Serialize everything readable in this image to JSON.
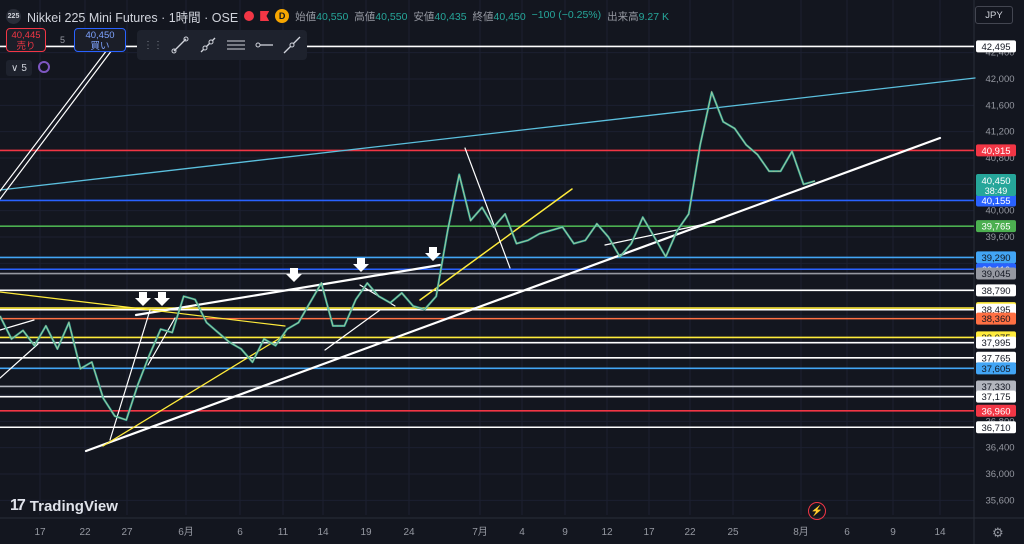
{
  "header": {
    "symbol_badge": "225",
    "title": "Nikkei 225 Mini Futures · 1時間 · OSE",
    "d_badge": "D",
    "ohlc": [
      {
        "label": "始値",
        "value": "40,550"
      },
      {
        "label": "高値",
        "value": "40,550"
      },
      {
        "label": "安値",
        "value": "40,435"
      },
      {
        "label": "終値",
        "value": "40,450"
      }
    ],
    "change": "−100 (−0.25%)",
    "volume_label": "出来高",
    "volume_value": "9.27 K"
  },
  "trade": {
    "sell_price": "40,445",
    "sell_label": "売り",
    "spread": "5",
    "buy_price": "40,450",
    "buy_label": "買い"
  },
  "indicator": {
    "count": "5",
    "chevron": "∨"
  },
  "toolbar": {
    "handle": "⋮⋮",
    "tools": [
      "trend-line-icon",
      "ray-icon",
      "parallel-channel-icon",
      "horizontal-ray-icon",
      "extended-line-icon"
    ]
  },
  "currency": "JPY",
  "brand": "TradingView",
  "brand_mark": "17",
  "settings_icon": "⚙",
  "chart_data": {
    "type": "line",
    "price_ticks": [
      "42,400",
      "42,000",
      "41,600",
      "41,200",
      "40,800",
      "40,400",
      "40,000",
      "39,600",
      "39,200",
      "38,800",
      "38,400",
      "38,000",
      "37,600",
      "37,200",
      "36,800",
      "36,400",
      "36,000",
      "35,600"
    ],
    "date_ticks": [
      {
        "label": "17",
        "pos": 0
      },
      {
        "label": "22",
        "pos": 1
      },
      {
        "label": "27",
        "pos": 2
      },
      {
        "label": "6月",
        "pos": 3
      },
      {
        "label": "6",
        "pos": 4
      },
      {
        "label": "11",
        "pos": 5
      },
      {
        "label": "14",
        "pos": 6
      },
      {
        "label": "19",
        "pos": 7
      },
      {
        "label": "24",
        "pos": 8
      },
      {
        "label": "7月",
        "pos": 9
      },
      {
        "label": "4",
        "pos": 10
      },
      {
        "label": "9",
        "pos": 11
      },
      {
        "label": "12",
        "pos": 12
      },
      {
        "label": "17",
        "pos": 13
      },
      {
        "label": "22",
        "pos": 14
      },
      {
        "label": "25",
        "pos": 15
      },
      {
        "label": "8月",
        "pos": 16
      },
      {
        "label": "6",
        "pos": 17
      },
      {
        "label": "9",
        "pos": 18
      },
      {
        "label": "14",
        "pos": 19
      }
    ],
    "ylim": [
      35500,
      42600
    ],
    "horizontal_levels": [
      {
        "price": 42495,
        "label": "42,495",
        "color": "#ffffff",
        "tag_bg": "#ffffff",
        "tag_fg": "#131722"
      },
      {
        "price": 40915,
        "label": "40,915",
        "color": "#f23645",
        "tag_bg": "#f23645",
        "tag_fg": "#ffffff"
      },
      {
        "price": 40155,
        "label": "40,155",
        "color": "#2962ff",
        "tag_bg": "#2962ff",
        "tag_fg": "#ffffff"
      },
      {
        "price": 39765,
        "label": "39,765",
        "color": "#4caf50",
        "tag_bg": "#4caf50",
        "tag_fg": "#ffffff"
      },
      {
        "price": 39290,
        "label": "39,290",
        "color": "#42a5f5",
        "tag_bg": "#42a5f5",
        "tag_fg": "#131722"
      },
      {
        "price": 39110,
        "label": "39,110",
        "color": "#2962ff",
        "tag_bg": "#2962ff",
        "tag_fg": "#ffffff"
      },
      {
        "price": 39045,
        "label": "39,045",
        "color": "#9598a1",
        "tag_bg": "#9598a1",
        "tag_fg": "#131722"
      },
      {
        "price": 38790,
        "label": "38,790",
        "color": "#ffffff",
        "tag_bg": "#ffffff",
        "tag_fg": "#131722"
      },
      {
        "price": 38520,
        "label": "38,520",
        "color": "#ffeb3b",
        "tag_bg": "#ffeb3b",
        "tag_fg": "#131722"
      },
      {
        "price": 38495,
        "label": "38,495",
        "color": "#ffffff",
        "tag_bg": "#ffffff",
        "tag_fg": "#131722"
      },
      {
        "price": 38360,
        "label": "38,360",
        "color": "#ff7043",
        "tag_bg": "#ff7043",
        "tag_fg": "#131722"
      },
      {
        "price": 38075,
        "label": "38,075",
        "color": "#ffeb3b",
        "tag_bg": "#ffeb3b",
        "tag_fg": "#131722"
      },
      {
        "price": 37995,
        "label": "37,995",
        "color": "#ffffff",
        "tag_bg": "#ffffff",
        "tag_fg": "#131722"
      },
      {
        "price": 37765,
        "label": "37,765",
        "color": "#ffffff",
        "tag_bg": "#ffffff",
        "tag_fg": "#131722"
      },
      {
        "price": 37605,
        "label": "37,605",
        "color": "#42a5f5",
        "tag_bg": "#42a5f5",
        "tag_fg": "#131722"
      },
      {
        "price": 37330,
        "label": "37,330",
        "color": "#b2b5be",
        "tag_bg": "#b2b5be",
        "tag_fg": "#131722"
      },
      {
        "price": 37175,
        "label": "37,175",
        "color": "#ffffff",
        "tag_bg": "#ffffff",
        "tag_fg": "#131722"
      },
      {
        "price": 36960,
        "label": "36,960",
        "color": "#f23645",
        "tag_bg": "#f23645",
        "tag_fg": "#ffffff"
      },
      {
        "price": 36710,
        "label": "36,710",
        "color": "#ffffff",
        "tag_bg": "#ffffff",
        "tag_fg": "#131722"
      }
    ],
    "current_price": {
      "label": "40,450",
      "countdown": "38:49",
      "color": "#26a69a"
    },
    "price_series": [
      38400,
      38050,
      38180,
      37950,
      38250,
      37900,
      38300,
      37600,
      37700,
      37150,
      36880,
      36820,
      37350,
      37800,
      38200,
      38150,
      38700,
      38650,
      38300,
      38150,
      38000,
      37900,
      37700,
      38050,
      37950,
      38200,
      38300,
      38600,
      38900,
      38250,
      38250,
      38650,
      38900,
      38700,
      38600,
      38750,
      38550,
      38500,
      38700,
      39700,
      40550,
      39850,
      40050,
      39750,
      39950,
      39500,
      39550,
      39650,
      39700,
      39750,
      39500,
      39550,
      39800,
      39600,
      39300,
      39500,
      39900,
      39600,
      39300,
      39700,
      39950,
      41000,
      41800,
      41350,
      41250,
      41000,
      40850,
      40600,
      40600,
      40900,
      40400,
      40450
    ],
    "series_color": "#a9dfa9",
    "annotations": [
      "down-arrow",
      "down-arrow",
      "down-arrow",
      "down-arrow",
      "down-arrow",
      "down-arrow"
    ]
  }
}
